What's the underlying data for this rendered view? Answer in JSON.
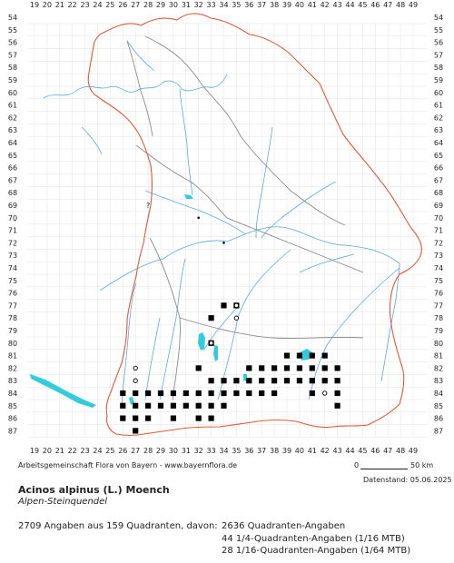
{
  "map": {
    "x_axis_labels": [
      "19",
      "20",
      "21",
      "22",
      "23",
      "24",
      "25",
      "26",
      "27",
      "28",
      "29",
      "30",
      "31",
      "32",
      "33",
      "34",
      "35",
      "36",
      "37",
      "38",
      "39",
      "40",
      "41",
      "42",
      "43",
      "44",
      "45",
      "46",
      "47",
      "48",
      "49"
    ],
    "y_axis_labels": [
      "54",
      "55",
      "56",
      "57",
      "58",
      "59",
      "60",
      "61",
      "62",
      "63",
      "64",
      "65",
      "66",
      "67",
      "68",
      "69",
      "70",
      "71",
      "72",
      "73",
      "74",
      "75",
      "76",
      "77",
      "78",
      "79",
      "80",
      "81",
      "82",
      "83",
      "84",
      "85",
      "86",
      "87"
    ],
    "colors": {
      "border": "#e05a3a",
      "district": "#8a8a8a",
      "river": "#5aa9e0",
      "lake": "#33ccdd",
      "record": "#000000",
      "grid": "#dddddd"
    },
    "symbols": {
      "full_quadrant": "filled-square",
      "quarter_quadrant": "open-circle",
      "sixteenth_quadrant": "small-dot",
      "uncertain": "question-mark"
    },
    "filled_cells": [
      [
        34,
        77
      ],
      [
        35,
        77
      ],
      [
        33,
        78
      ],
      [
        33,
        80
      ],
      [
        32,
        82
      ],
      [
        33,
        83
      ],
      [
        34,
        83
      ],
      [
        35,
        83
      ],
      [
        36,
        83
      ],
      [
        37,
        83
      ],
      [
        38,
        83
      ],
      [
        39,
        83
      ],
      [
        40,
        83
      ],
      [
        41,
        83
      ],
      [
        42,
        83
      ],
      [
        43,
        83
      ],
      [
        36,
        82
      ],
      [
        37,
        82
      ],
      [
        38,
        82
      ],
      [
        39,
        82
      ],
      [
        40,
        82
      ],
      [
        41,
        82
      ],
      [
        42,
        82
      ],
      [
        43,
        82
      ],
      [
        39,
        81
      ],
      [
        40,
        81
      ],
      [
        41,
        81
      ],
      [
        42,
        81
      ],
      [
        26,
        84
      ],
      [
        27,
        84
      ],
      [
        28,
        84
      ],
      [
        29,
        84
      ],
      [
        30,
        84
      ],
      [
        31,
        84
      ],
      [
        32,
        84
      ],
      [
        33,
        84
      ],
      [
        34,
        84
      ],
      [
        35,
        84
      ],
      [
        36,
        84
      ],
      [
        37,
        84
      ],
      [
        38,
        84
      ],
      [
        41,
        84
      ],
      [
        43,
        84
      ],
      [
        26,
        85
      ],
      [
        27,
        85
      ],
      [
        28,
        85
      ],
      [
        29,
        85
      ],
      [
        30,
        85
      ],
      [
        31,
        85
      ],
      [
        32,
        85
      ],
      [
        33,
        85
      ],
      [
        34,
        85
      ],
      [
        43,
        85
      ],
      [
        26,
        86
      ],
      [
        27,
        86
      ],
      [
        28,
        86
      ],
      [
        30,
        86
      ],
      [
        32,
        86
      ],
      [
        33,
        86
      ],
      [
        27,
        87
      ]
    ],
    "open_circles": [
      [
        35,
        77
      ],
      [
        35,
        78
      ],
      [
        33,
        80
      ],
      [
        27,
        82
      ],
      [
        27,
        83
      ],
      [
        42,
        84
      ]
    ],
    "small_dots": [
      [
        32,
        70
      ],
      [
        34,
        72
      ]
    ],
    "question_marks": [
      [
        28,
        69
      ]
    ]
  },
  "credit": "Arbeitsgemeinschaft Flora von Bayern - www.bayernflora.de",
  "scale": {
    "zero": "0",
    "label": "50 km"
  },
  "date": "Datenstand: 05.06.2025",
  "species": {
    "scientific": "Acinos alpinus (L.) Moench",
    "common": "Alpen-Steinquendel"
  },
  "stats": {
    "total": "2709 Angaben aus 159 Quadranten, davon:",
    "full": "2636 Quadranten-Angaben",
    "quarter": "44 1/4-Quadranten-Angaben (1/16 MTB)",
    "sixteenth": "28 1/16-Quadranten-Angaben (1/64 MTB)"
  }
}
